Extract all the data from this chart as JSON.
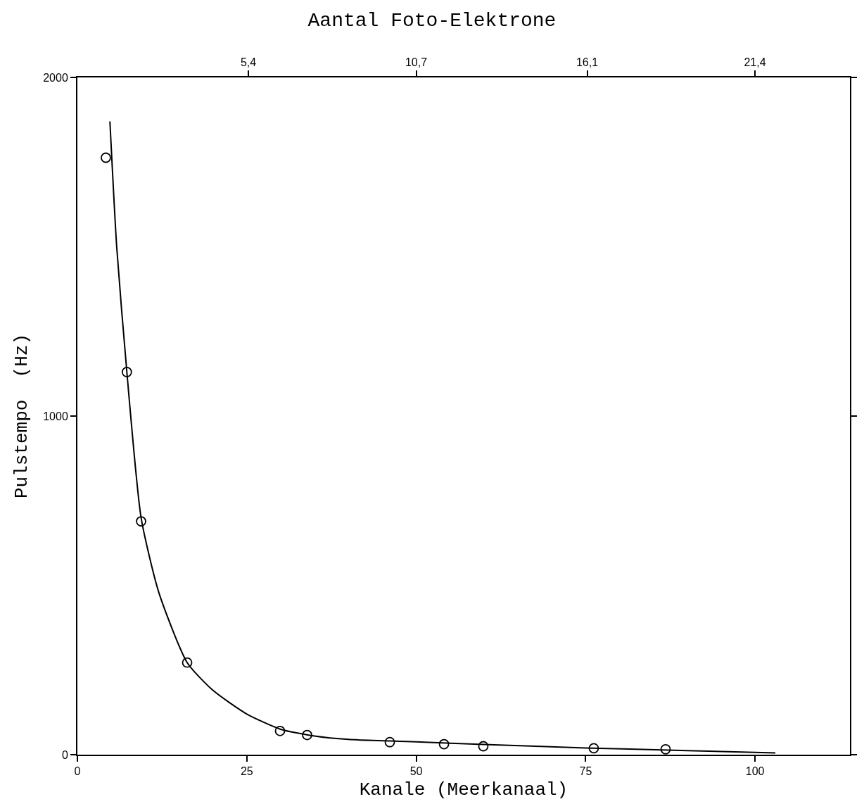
{
  "chart_data": {
    "type": "scatter",
    "title": "Aantal Foto-Elektrone",
    "xlabel": "Kanale (Meerkanaal)",
    "ylabel": "Pulstempo  (Hz)",
    "xlim": [
      0,
      114
    ],
    "xticks": [
      0,
      25,
      50,
      75,
      100
    ],
    "ylim": [
      0,
      2000
    ],
    "yticks": [
      0,
      1000,
      2000
    ],
    "x2lim": [
      0,
      24.4
    ],
    "x2ticks": [
      {
        "value": 5.4,
        "label": "5,4"
      },
      {
        "value": 10.7,
        "label": "10,7"
      },
      {
        "value": 16.1,
        "label": "16,1"
      },
      {
        "value": 21.4,
        "label": "21,4"
      }
    ],
    "series": [
      {
        "color": "#000000",
        "marker": "circle",
        "x": [
          4.2,
          7.3,
          9.4,
          16.2,
          29.9,
          33.9,
          46.1,
          54.1,
          59.9,
          76.2,
          86.8
        ],
        "values": [
          1763,
          1130,
          689,
          272,
          70,
          58,
          37,
          31,
          25,
          19,
          16
        ]
      },
      {
        "type": "line",
        "color": "#000000",
        "marker": "none",
        "line_style": "solid",
        "x": [
          4.8,
          5.8,
          7.3,
          9.4,
          12,
          16.2,
          20,
          25,
          30,
          35,
          40,
          50,
          60,
          75,
          90,
          103
        ],
        "values": [
          1870,
          1500,
          1130,
          700,
          480,
          272,
          190,
          120,
          75,
          55,
          45,
          38,
          30,
          20,
          12,
          5
        ]
      }
    ]
  }
}
